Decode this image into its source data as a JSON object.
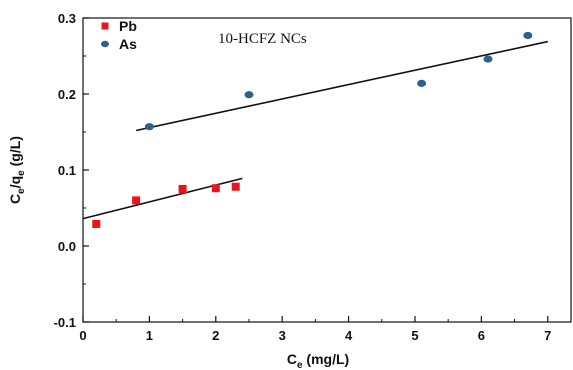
{
  "chart_data": {
    "type": "scatter",
    "annotation": "10-HCFZ NCs",
    "xlabel": {
      "main": "C",
      "sub": "e",
      "unit": " (mg/L)"
    },
    "ylabel": {
      "c": "C",
      "e1": "e",
      "q": "/q",
      "e2": "e",
      "unit": " (g/L)"
    },
    "xlim": [
      0,
      7.35
    ],
    "ylim": [
      -0.1,
      0.3
    ],
    "xticks": [
      0,
      1,
      2,
      3,
      4,
      5,
      6,
      7
    ],
    "yticks": [
      -0.1,
      0.0,
      0.1,
      0.2,
      0.3
    ],
    "ytick_labels": [
      "-0.1",
      "0.0",
      "0.1",
      "0.2",
      "0.3"
    ],
    "grid": false,
    "legend_position": "top-left",
    "series": [
      {
        "name": "Pb",
        "marker": "square",
        "color": "#e8141e",
        "x": [
          0.2,
          0.8,
          1.5,
          2.0,
          2.3
        ],
        "y": [
          0.029,
          0.06,
          0.075,
          0.076,
          0.078
        ],
        "fit": {
          "x": [
            0.0,
            2.4
          ],
          "y": [
            0.036,
            0.089
          ]
        }
      },
      {
        "name": "As",
        "marker": "circle",
        "color": "#2e5f8f",
        "x": [
          1.0,
          2.5,
          5.1,
          6.1,
          6.7
        ],
        "y": [
          0.157,
          0.199,
          0.214,
          0.246,
          0.277
        ],
        "fit": {
          "x": [
            0.8,
            7.0
          ],
          "y": [
            0.152,
            0.269
          ]
        }
      }
    ]
  }
}
